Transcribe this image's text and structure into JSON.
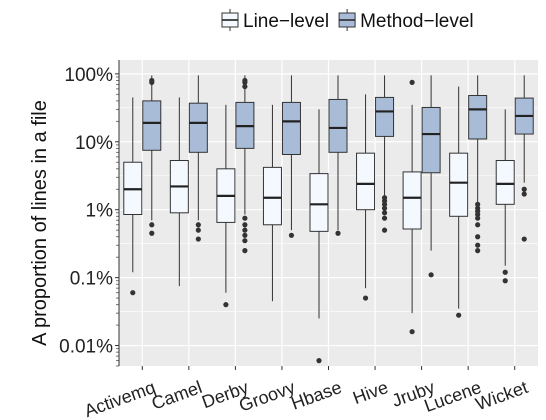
{
  "chart_data": {
    "type": "boxplot",
    "title": "",
    "xlabel": "",
    "ylabel": "A proportion of lines in a file",
    "y_scale": "log",
    "ylim": [
      0.005,
      160
    ],
    "yticks": [
      {
        "value": 0.01,
        "label": "0.01%"
      },
      {
        "value": 0.1,
        "label": "0.1%"
      },
      {
        "value": 1,
        "label": "1%"
      },
      {
        "value": 10,
        "label": "10%"
      },
      {
        "value": 100,
        "label": "100%"
      }
    ],
    "grid": true,
    "legend_position": "top",
    "categories": [
      "Activemq",
      "Camel",
      "Derby",
      "Groovy",
      "Hbase",
      "Hive",
      "Jruby",
      "Lucene",
      "Wicket"
    ],
    "series": [
      {
        "name": "Line−level",
        "color": "#f4f8ff",
        "boxes": [
          {
            "whisker_low": 0.12,
            "q1": 0.85,
            "median": 2.0,
            "q3": 5.0,
            "whisker_high": 45,
            "outliers": [
              0.06
            ]
          },
          {
            "whisker_low": 0.075,
            "q1": 0.9,
            "median": 2.2,
            "q3": 5.3,
            "whisker_high": 45,
            "outliers": []
          },
          {
            "whisker_low": 0.06,
            "q1": 0.65,
            "median": 1.6,
            "q3": 4.0,
            "whisker_high": 35,
            "outliers": [
              0.04
            ]
          },
          {
            "whisker_low": 0.045,
            "q1": 0.6,
            "median": 1.5,
            "q3": 4.2,
            "whisker_high": 35,
            "outliers": []
          },
          {
            "whisker_low": 0.025,
            "q1": 0.48,
            "median": 1.2,
            "q3": 3.4,
            "whisker_high": 30,
            "outliers": [
              0.006
            ]
          },
          {
            "whisker_low": 0.07,
            "q1": 1.0,
            "median": 2.4,
            "q3": 6.8,
            "whisker_high": 50,
            "outliers": [
              0.05
            ]
          },
          {
            "whisker_low": 0.03,
            "q1": 0.52,
            "median": 1.5,
            "q3": 3.6,
            "whisker_high": 35,
            "outliers": [
              0.016,
              75
            ]
          },
          {
            "whisker_low": 0.035,
            "q1": 0.8,
            "median": 2.5,
            "q3": 6.8,
            "whisker_high": 65,
            "outliers": [
              0.028
            ]
          },
          {
            "whisker_low": 0.15,
            "q1": 1.2,
            "median": 2.4,
            "q3": 5.3,
            "whisker_high": 30,
            "outliers": [
              0.12,
              0.09
            ]
          }
        ]
      },
      {
        "name": "Method−level",
        "color": "#a8bcd8",
        "boxes": [
          {
            "whisker_low": 0.7,
            "q1": 7.5,
            "median": 19,
            "q3": 40,
            "whisker_high": 95,
            "outliers": [
              0.6,
              0.45,
              75,
              80
            ]
          },
          {
            "whisker_low": 0.7,
            "q1": 7.0,
            "median": 19,
            "q3": 37,
            "whisker_high": 95,
            "outliers": [
              0.6,
              0.5,
              0.37
            ]
          },
          {
            "whisker_low": 0.85,
            "q1": 8.0,
            "median": 17,
            "q3": 38,
            "whisker_high": 95,
            "outliers": [
              0.75,
              0.6,
              0.5,
              0.42,
              0.35,
              0.25,
              65,
              75,
              80
            ]
          },
          {
            "whisker_low": 0.5,
            "q1": 6.5,
            "median": 20,
            "q3": 38,
            "whisker_high": 95,
            "outliers": [
              0.42
            ]
          },
          {
            "whisker_low": 0.5,
            "q1": 7.0,
            "median": 16,
            "q3": 42,
            "whisker_high": 95,
            "outliers": [
              0.45
            ]
          },
          {
            "whisker_low": 1.6,
            "q1": 12,
            "median": 28,
            "q3": 45,
            "whisker_high": 95,
            "outliers": [
              1.5,
              1.35,
              1.2,
              1.05,
              0.9,
              0.75,
              0.5
            ]
          },
          {
            "whisker_low": 0.25,
            "q1": 3.5,
            "median": 13,
            "q3": 32,
            "whisker_high": 95,
            "outliers": [
              0.11
            ]
          },
          {
            "whisker_low": 1.3,
            "q1": 11,
            "median": 30,
            "q3": 48,
            "whisker_high": 95,
            "outliers": [
              1.2,
              1.05,
              0.95,
              0.85,
              0.75,
              0.6,
              0.4,
              0.3,
              0.25
            ]
          },
          {
            "whisker_low": 2.5,
            "q1": 13,
            "median": 24,
            "q3": 44,
            "whisker_high": 95,
            "outliers": [
              2.0,
              1.7,
              0.37
            ]
          }
        ]
      }
    ]
  }
}
